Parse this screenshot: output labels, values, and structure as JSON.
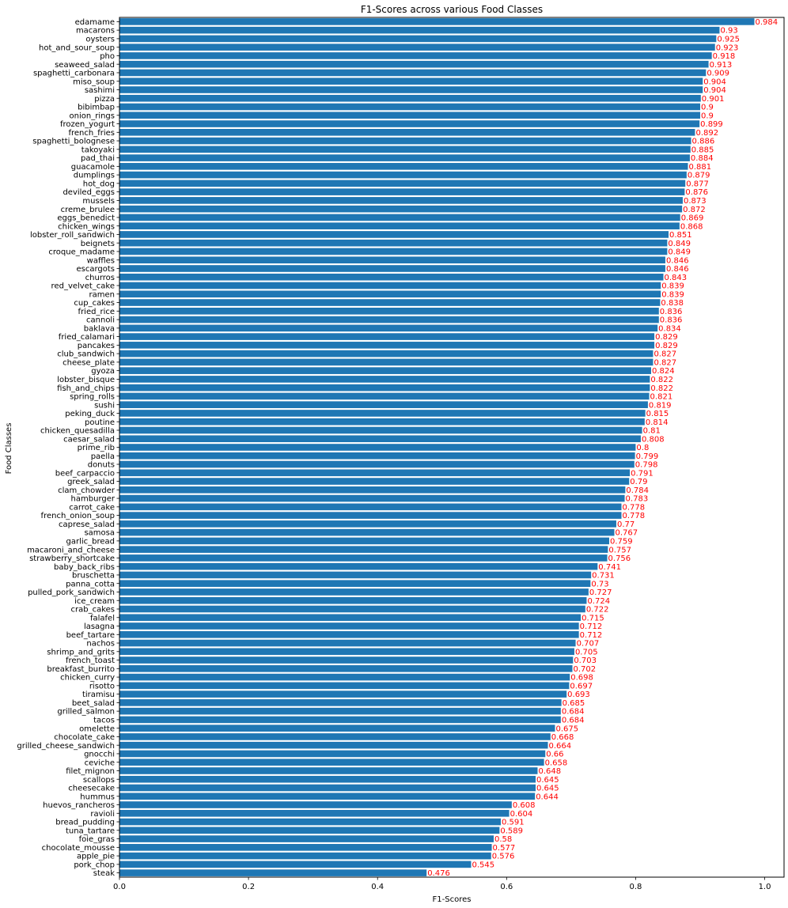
{
  "chart_data": {
    "type": "bar",
    "orientation": "horizontal",
    "title": "F1-Scores across various Food Classes",
    "xlabel": "F1-Scores",
    "ylabel": "Food Classes",
    "xlim": [
      0.0,
      1.03
    ],
    "xticks": [
      "0.0",
      "0.2",
      "0.4",
      "0.6",
      "0.8",
      "1.0"
    ],
    "grid": false,
    "bar_color": "#1f77b4",
    "label_color": "#ff0000",
    "categories": [
      "edamame",
      "macarons",
      "oysters",
      "hot_and_sour_soup",
      "pho",
      "seaweed_salad",
      "spaghetti_carbonara",
      "miso_soup",
      "sashimi",
      "pizza",
      "bibimbap",
      "onion_rings",
      "frozen_yogurt",
      "french_fries",
      "spaghetti_bolognese",
      "takoyaki",
      "pad_thai",
      "guacamole",
      "dumplings",
      "hot_dog",
      "deviled_eggs",
      "mussels",
      "creme_brulee",
      "eggs_benedict",
      "chicken_wings",
      "lobster_roll_sandwich",
      "beignets",
      "croque_madame",
      "waffles",
      "escargots",
      "churros",
      "red_velvet_cake",
      "ramen",
      "cup_cakes",
      "fried_rice",
      "cannoli",
      "baklava",
      "fried_calamari",
      "pancakes",
      "club_sandwich",
      "cheese_plate",
      "gyoza",
      "lobster_bisque",
      "fish_and_chips",
      "spring_rolls",
      "sushi",
      "peking_duck",
      "poutine",
      "chicken_quesadilla",
      "caesar_salad",
      "prime_rib",
      "paella",
      "donuts",
      "beef_carpaccio",
      "greek_salad",
      "clam_chowder",
      "hamburger",
      "carrot_cake",
      "french_onion_soup",
      "caprese_salad",
      "samosa",
      "garlic_bread",
      "macaroni_and_cheese",
      "strawberry_shortcake",
      "baby_back_ribs",
      "bruschetta",
      "panna_cotta",
      "pulled_pork_sandwich",
      "ice_cream",
      "crab_cakes",
      "falafel",
      "lasagna",
      "beef_tartare",
      "nachos",
      "shrimp_and_grits",
      "french_toast",
      "breakfast_burrito",
      "chicken_curry",
      "risotto",
      "tiramisu",
      "beet_salad",
      "grilled_salmon",
      "tacos",
      "omelette",
      "chocolate_cake",
      "grilled_cheese_sandwich",
      "gnocchi",
      "ceviche",
      "filet_mignon",
      "scallops",
      "cheesecake",
      "hummus",
      "huevos_rancheros",
      "ravioli",
      "bread_pudding",
      "tuna_tartare",
      "foie_gras",
      "chocolate_mousse",
      "apple_pie",
      "pork_chop",
      "steak"
    ],
    "values": [
      0.984,
      0.93,
      0.925,
      0.923,
      0.918,
      0.913,
      0.909,
      0.904,
      0.904,
      0.901,
      0.9,
      0.9,
      0.899,
      0.892,
      0.886,
      0.885,
      0.884,
      0.881,
      0.879,
      0.877,
      0.876,
      0.873,
      0.872,
      0.869,
      0.868,
      0.851,
      0.849,
      0.849,
      0.846,
      0.846,
      0.843,
      0.839,
      0.839,
      0.838,
      0.836,
      0.836,
      0.834,
      0.829,
      0.829,
      0.827,
      0.827,
      0.824,
      0.822,
      0.822,
      0.821,
      0.819,
      0.815,
      0.814,
      0.81,
      0.808,
      0.8,
      0.799,
      0.798,
      0.791,
      0.79,
      0.784,
      0.783,
      0.778,
      0.778,
      0.77,
      0.767,
      0.759,
      0.757,
      0.756,
      0.741,
      0.731,
      0.73,
      0.727,
      0.724,
      0.722,
      0.715,
      0.712,
      0.712,
      0.707,
      0.705,
      0.703,
      0.702,
      0.698,
      0.697,
      0.693,
      0.685,
      0.684,
      0.684,
      0.675,
      0.668,
      0.664,
      0.66,
      0.658,
      0.648,
      0.645,
      0.645,
      0.644,
      0.608,
      0.604,
      0.591,
      0.589,
      0.58,
      0.577,
      0.576,
      0.545,
      0.476
    ],
    "value_labels": [
      "0.984",
      "0.93",
      "0.925",
      "0.923",
      "0.918",
      "0.913",
      "0.909",
      "0.904",
      "0.904",
      "0.901",
      "0.9",
      "0.9",
      "0.899",
      "0.892",
      "0.886",
      "0.885",
      "0.884",
      "0.881",
      "0.879",
      "0.877",
      "0.876",
      "0.873",
      "0.872",
      "0.869",
      "0.868",
      "0.851",
      "0.849",
      "0.849",
      "0.846",
      "0.846",
      "0.843",
      "0.839",
      "0.839",
      "0.838",
      "0.836",
      "0.836",
      "0.834",
      "0.829",
      "0.829",
      "0.827",
      "0.827",
      "0.824",
      "0.822",
      "0.822",
      "0.821",
      "0.819",
      "0.815",
      "0.814",
      "0.81",
      "0.808",
      "0.8",
      "0.799",
      "0.798",
      "0.791",
      "0.79",
      "0.784",
      "0.783",
      "0.778",
      "0.778",
      "0.77",
      "0.767",
      "0.759",
      "0.757",
      "0.756",
      "0.741",
      "0.731",
      "0.73",
      "0.727",
      "0.724",
      "0.722",
      "0.715",
      "0.712",
      "0.712",
      "0.707",
      "0.705",
      "0.703",
      "0.702",
      "0.698",
      "0.697",
      "0.693",
      "0.685",
      "0.684",
      "0.684",
      "0.675",
      "0.668",
      "0.664",
      "0.66",
      "0.658",
      "0.648",
      "0.645",
      "0.645",
      "0.644",
      "0.608",
      "0.604",
      "0.591",
      "0.589",
      "0.58",
      "0.577",
      "0.576",
      "0.545",
      "0.476"
    ]
  }
}
